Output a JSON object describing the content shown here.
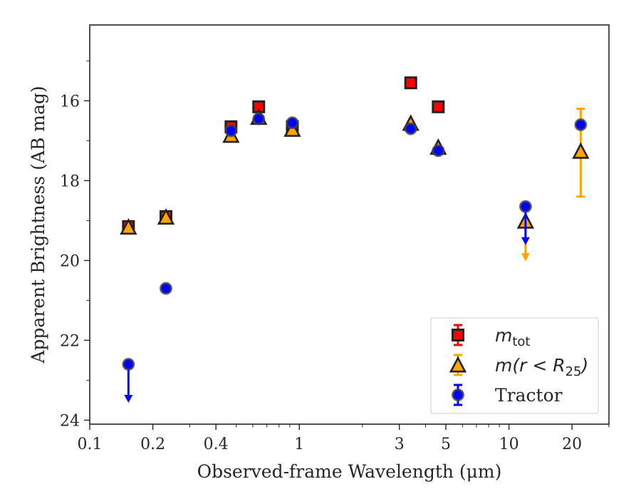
{
  "chart_data": {
    "type": "scatter",
    "xlabel": "Observed-frame Wavelength (μm)",
    "ylabel": "Apparent Brightness (AB mag)",
    "x_scale": "log",
    "xlim": [
      0.1,
      30
    ],
    "ylim": [
      24.1,
      14.1
    ],
    "y_inverted": true,
    "x_ticks": [
      {
        "value": 0.1,
        "label": "0.1"
      },
      {
        "value": 0.2,
        "label": "0.2"
      },
      {
        "value": 0.4,
        "label": "0.4"
      },
      {
        "value": 1,
        "label": "1"
      },
      {
        "value": 3,
        "label": "3"
      },
      {
        "value": 5,
        "label": "5"
      },
      {
        "value": 10,
        "label": "10"
      },
      {
        "value": 20,
        "label": "20"
      }
    ],
    "y_ticks": [
      {
        "value": 16,
        "label": "16"
      },
      {
        "value": 18,
        "label": "18"
      },
      {
        "value": 20,
        "label": "20"
      },
      {
        "value": 22,
        "label": "22"
      },
      {
        "value": 24,
        "label": "24"
      }
    ],
    "grid": false,
    "legend_position": "bottom-right",
    "series": [
      {
        "name_main": "m",
        "name_sub": "tot",
        "marker": "square",
        "color": "#ff0000",
        "edge_color": "#222222",
        "points": [
          {
            "x": 0.153,
            "y": 19.15,
            "err": 0.06
          },
          {
            "x": 0.231,
            "y": 18.9,
            "err": 0.06
          },
          {
            "x": 0.472,
            "y": 16.65,
            "err": 0.03
          },
          {
            "x": 0.64,
            "y": 16.15,
            "err": 0.03
          },
          {
            "x": 0.926,
            "y": 16.65,
            "err": 0.03
          },
          {
            "x": 3.4,
            "y": 15.55,
            "err": 0.03
          },
          {
            "x": 4.6,
            "y": 16.15,
            "err": 0.03
          }
        ]
      },
      {
        "name_main": "m(r < R",
        "name_sub": "25",
        "name_end": ")",
        "marker": "triangle",
        "color": "#ffa500",
        "edge_color": "#222222",
        "points": [
          {
            "x": 0.153,
            "y": 19.2,
            "err": 0.06
          },
          {
            "x": 0.231,
            "y": 18.95,
            "err": 0.06
          },
          {
            "x": 0.472,
            "y": 16.9,
            "err": 0.03
          },
          {
            "x": 0.64,
            "y": 16.45,
            "err": 0.03
          },
          {
            "x": 0.926,
            "y": 16.75,
            "err": 0.03
          },
          {
            "x": 3.4,
            "y": 16.6,
            "err": 0.03
          },
          {
            "x": 4.6,
            "y": 17.2,
            "err": 0.03
          },
          {
            "x": 12.0,
            "y": 19.05,
            "upper_limit": true
          },
          {
            "x": 22.0,
            "y": 17.3,
            "err_low": 1.1,
            "err_high": 1.1
          }
        ]
      },
      {
        "name": "Tractor",
        "marker": "circle",
        "color": "#0000ff",
        "edge_color": "#444444",
        "points": [
          {
            "x": 0.153,
            "y": 22.6,
            "upper_limit": true
          },
          {
            "x": 0.231,
            "y": 20.7,
            "err": 0.08
          },
          {
            "x": 0.472,
            "y": 16.75,
            "err": 0.03
          },
          {
            "x": 0.64,
            "y": 16.45,
            "err": 0.03
          },
          {
            "x": 0.926,
            "y": 16.55,
            "err": 0.03
          },
          {
            "x": 3.4,
            "y": 16.7,
            "err": 0.03
          },
          {
            "x": 4.6,
            "y": 17.25,
            "err": 0.03
          },
          {
            "x": 12.0,
            "y": 18.65,
            "upper_limit": true
          },
          {
            "x": 22.0,
            "y": 16.6,
            "err": 0.05
          }
        ]
      }
    ]
  }
}
